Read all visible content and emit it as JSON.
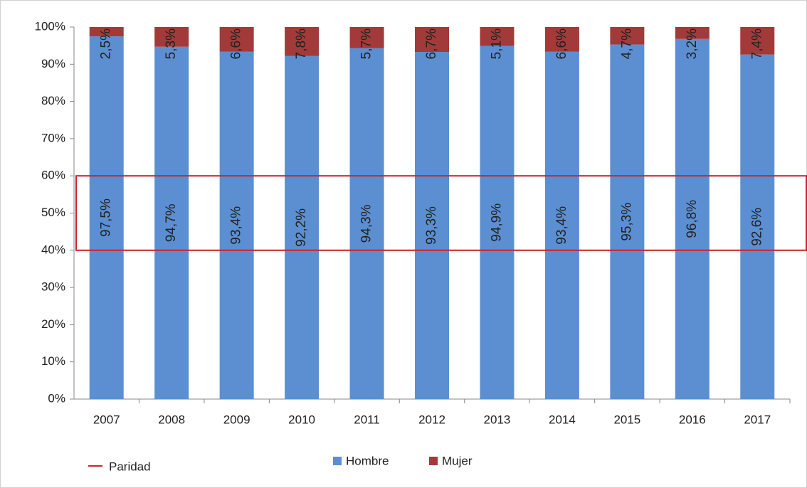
{
  "chart_data": {
    "type": "stacked_bar",
    "categories": [
      "2007",
      "2008",
      "2009",
      "2010",
      "2011",
      "2012",
      "2013",
      "2014",
      "2015",
      "2016",
      "2017"
    ],
    "series": [
      {
        "name": "Hombre",
        "color": "#5b8fd2",
        "values": [
          97.5,
          94.7,
          93.4,
          92.2,
          94.3,
          93.3,
          94.9,
          93.4,
          95.3,
          96.8,
          92.6
        ],
        "value_labels": [
          "97,5%",
          "94,7%",
          "93,4%",
          "92,2%",
          "94,3%",
          "93,3%",
          "94,9%",
          "93,4%",
          "95,3%",
          "96,8%",
          "92,6%"
        ]
      },
      {
        "name": "Mujer",
        "color": "#a33a3a",
        "values": [
          2.5,
          5.3,
          6.6,
          7.8,
          5.7,
          6.7,
          5.1,
          6.6,
          4.7,
          3.2,
          7.4
        ],
        "value_labels": [
          "2,5%",
          "5,3%",
          "6,6%",
          "7,8%",
          "5,7%",
          "6,7%",
          "5,1%",
          "6,6%",
          "4,7%",
          "3,2%",
          "7,4%"
        ]
      }
    ],
    "paridad": {
      "name": "Paridad",
      "color": "#d0202a",
      "range": [
        40,
        60
      ]
    },
    "ylim": [
      0,
      100
    ],
    "yticks": [
      {
        "value": 0,
        "label": "0%"
      },
      {
        "value": 10,
        "label": "10%"
      },
      {
        "value": 20,
        "label": "20%"
      },
      {
        "value": 30,
        "label": "30%"
      },
      {
        "value": 40,
        "label": "40%"
      },
      {
        "value": 50,
        "label": "50%"
      },
      {
        "value": 60,
        "label": "60%"
      },
      {
        "value": 70,
        "label": "70%"
      },
      {
        "value": 80,
        "label": "80%"
      },
      {
        "value": 90,
        "label": "90%"
      },
      {
        "value": 100,
        "label": "100%"
      }
    ]
  }
}
